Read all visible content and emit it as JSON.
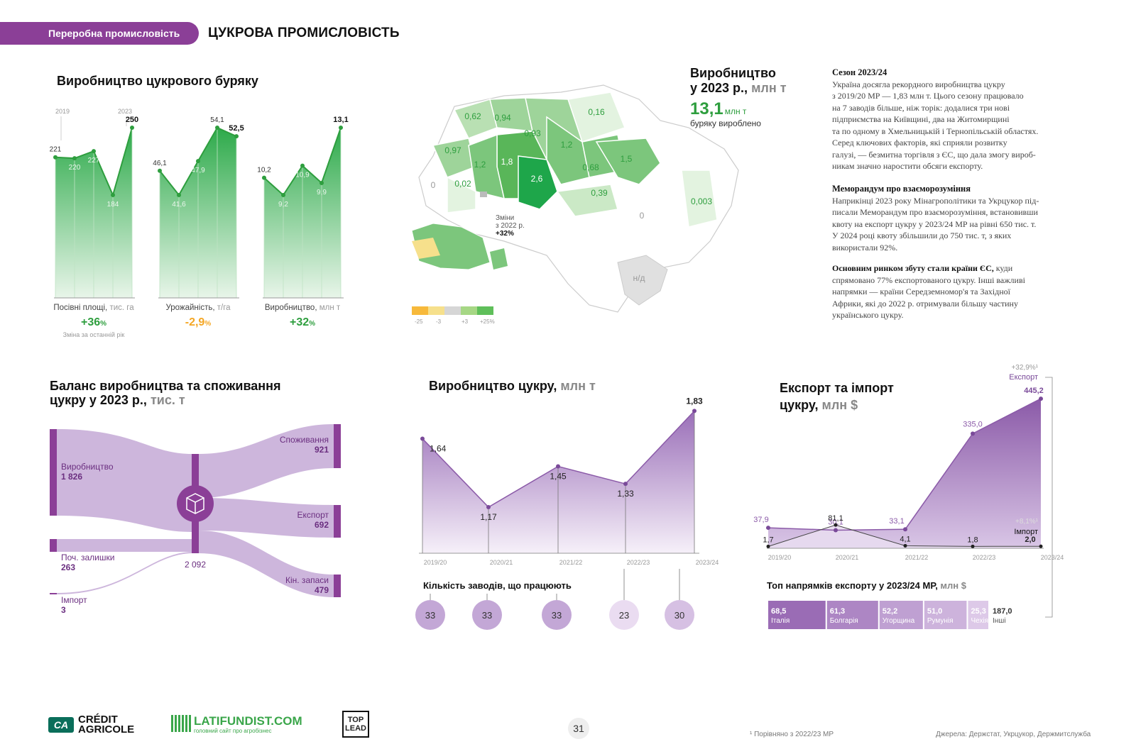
{
  "header": {
    "section_label": "Переробна промисловість",
    "page_title": "ЦУКРОВА ПРОМИСЛОВІСТЬ"
  },
  "beet": {
    "title": "Виробництво цукрового буряку",
    "year_start": "2019",
    "year_end": "2023",
    "footnote": "Зміна за останній рік",
    "colors": {
      "fill_top": "#2daa4a",
      "fill_bottom": "#e8f5e9",
      "positive": "#2e9e3e",
      "negative": "#f4a623"
    }
  },
  "chart_data": [
    {
      "type": "area",
      "name": "beet-area",
      "x": [
        "2019",
        "2020",
        "2021",
        "2022",
        "2023"
      ],
      "values": [
        221,
        220,
        227,
        184,
        250
      ],
      "labels": [
        "221",
        "220",
        "227",
        "184",
        "250"
      ],
      "highlight_last": true,
      "xlabel": "Посівні площі,",
      "unit": "тис. га",
      "change": "+36",
      "change_unit": "%"
    },
    {
      "type": "area",
      "name": "beet-yield",
      "x": [
        "2019",
        "2020",
        "2021",
        "2022",
        "2023"
      ],
      "values": [
        46.1,
        41.6,
        47.9,
        54.1,
        52.5
      ],
      "labels": [
        "46,1",
        "41,6",
        "47,9",
        "54,1",
        "52,5"
      ],
      "xlabel": "Урожайність,",
      "unit": "т/га",
      "change": "-2,9",
      "change_unit": "%"
    },
    {
      "type": "area",
      "name": "beet-production",
      "x": [
        "2019",
        "2020",
        "2021",
        "2022",
        "2023"
      ],
      "values": [
        10.2,
        9.2,
        10.9,
        9.9,
        13.1
      ],
      "labels": [
        "10,2",
        "9,2",
        "10,9",
        "9,9",
        "13,1"
      ],
      "xlabel": "Виробництво,",
      "unit": "млн т",
      "change": "+32",
      "change_unit": "%"
    },
    {
      "type": "area",
      "name": "sugar-production",
      "title": "Виробництво цукру,",
      "title_unit": "млн т",
      "x": [
        "2019/20",
        "2020/21",
        "2021/22",
        "2022/23",
        "2023/24"
      ],
      "values": [
        1.64,
        1.17,
        1.45,
        1.33,
        1.83
      ],
      "labels": [
        "1,64",
        "1,17",
        "1,45",
        "1,33",
        "1,83"
      ],
      "plants_title": "Кількість заводів, що працюють",
      "plants": [
        "33",
        "33",
        "33",
        "23",
        "30"
      ],
      "plants_values": [
        33,
        33,
        33,
        23,
        30
      ]
    },
    {
      "type": "area",
      "name": "export-import",
      "title_line1": "Експорт та імпорт",
      "title_line2": "цукру,",
      "title_unit": "млн $",
      "x": [
        "2019/20",
        "2020/21",
        "2021/22",
        "2022/23",
        "2023/24"
      ],
      "series": [
        {
          "name": "Експорт",
          "values": [
            37.9,
            30.1,
            33.1,
            335.0,
            445.2
          ],
          "labels": [
            "37,9",
            "30,1",
            "33,1",
            "335,0",
            "445,2"
          ],
          "change": "+32,9%¹"
        },
        {
          "name": "Імпорт",
          "values": [
            1.7,
            81.1,
            4.1,
            1.8,
            2.0
          ],
          "labels": [
            "1,7",
            "81,1",
            "4,1",
            "1,8",
            "2,0"
          ],
          "change": "+8,1%¹"
        }
      ],
      "top_title": "Топ напрямків експорту у 2023/24 МР,",
      "top_unit": "млн $",
      "top": [
        {
          "value": "68,5",
          "name": "Італія",
          "v": 68.5
        },
        {
          "value": "61,3",
          "name": "Болгарія",
          "v": 61.3
        },
        {
          "value": "52,2",
          "name": "Угорщина",
          "v": 52.2
        },
        {
          "value": "51,0",
          "name": "Румунія",
          "v": 51.0
        },
        {
          "value": "25,3",
          "name": "Чехія",
          "v": 25.3
        },
        {
          "value": "187,0",
          "name": "Інші",
          "v": 187.0
        }
      ]
    }
  ],
  "map": {
    "title_line1": "Виробництво",
    "title_line2": "у 2023 р.,",
    "title_unit": "млн т",
    "total": "13,1",
    "total_unit": "млн т",
    "total_sub": "буряку вироблено",
    "region_values": [
      "0,62",
      "0,94",
      "0,16",
      "0,93",
      "0,97",
      "1,2",
      "1,8",
      "1,2",
      "0,68",
      "1,5",
      "0",
      "0,02",
      "2,6",
      "0,39",
      "0,003",
      "0",
      "н/д"
    ],
    "inset_label_line1": "Зміни",
    "inset_label_line2": "з 2022 р.",
    "inset_change": "+32%",
    "legend": [
      "-25",
      "-3",
      "+3",
      "+25%"
    ],
    "legend_colors": [
      "#f7b93b",
      "#f6e08c",
      "#d6d6d6",
      "#a6d785",
      "#5fbf5a"
    ]
  },
  "text": {
    "p1_head": "Сезон 2023/24",
    "p1_lines": [
      "Україна досягла рекордного виробництва цукру",
      "з 2019/20 МР — 1,83 млн т. Цього сезону працювало",
      "на 7 заводів більше, ніж торік: додалися три нові",
      "підприємства на Київщині, два на Житомирщині",
      "та по одному в Хмельницькій і Тернопільській областях.",
      "Серед ключових факторів, які сприяли розвитку",
      "галузі, — безмитна торгівля з ЄС, що дала змогу вироб-",
      "никам значно наростити обсяги експорту."
    ],
    "p2_head": "Меморандум про взаєморозуміння",
    "p2_lines": [
      "Наприкінці 2023 року Мінагрополітики та Укрцукор під-",
      "писали Меморандум про взаєморозуміння, встановивши",
      "квоту на експорт цукру у 2023/24 МР на рівні 650 тис. т.",
      "У 2024 році квоту збільшили до 750 тис. т, з яких",
      "використали 92%."
    ],
    "p3_bold": "Основним ринком збуту стали країни ЄС,",
    "p3_first_rest": " куди",
    "p3_lines": [
      "спрямовано 77% експортованого цукру. Інші важливі",
      "напрямки — країни Середземномор'я та Західної",
      "Африки, які до 2022 р. отримували більшу частину",
      "українського цукру."
    ]
  },
  "balance": {
    "title_line1": "Баланс виробництва та споживання",
    "title_line2": "цукру у 2023 р.,",
    "title_unit": "тис. т",
    "center_value": "2 092",
    "inputs": [
      {
        "name": "Виробництво",
        "value": "1 826",
        "v": 1826
      },
      {
        "name": "Поч. залишки",
        "value": "263",
        "v": 263
      },
      {
        "name": "Імпорт",
        "value": "3",
        "v": 3
      }
    ],
    "outputs": [
      {
        "name": "Споживання",
        "value": "921",
        "v": 921
      },
      {
        "name": "Експорт",
        "value": "692",
        "v": 692
      },
      {
        "name": "Кін. запаси",
        "value": "479",
        "v": 479
      }
    ],
    "colors": {
      "bar": "#8b3f97",
      "flow": "#cdb6dc",
      "text": "#6b2f80"
    }
  },
  "footer": {
    "ca_line1": "CRÉDIT",
    "ca_line2": "AGRICOLE",
    "ca_mark": "CA",
    "lat_name": "LATIFUNDIST.COM",
    "lat_sub": "головний сайт про агробізнес",
    "top_line1": "TOP",
    "top_line2": "LEAD",
    "page_number": "31",
    "footnote": "¹ Порівняно з 2022/23 МР",
    "sources": "Джерела: Держстат, Укрцукор, Держмитслужба"
  }
}
